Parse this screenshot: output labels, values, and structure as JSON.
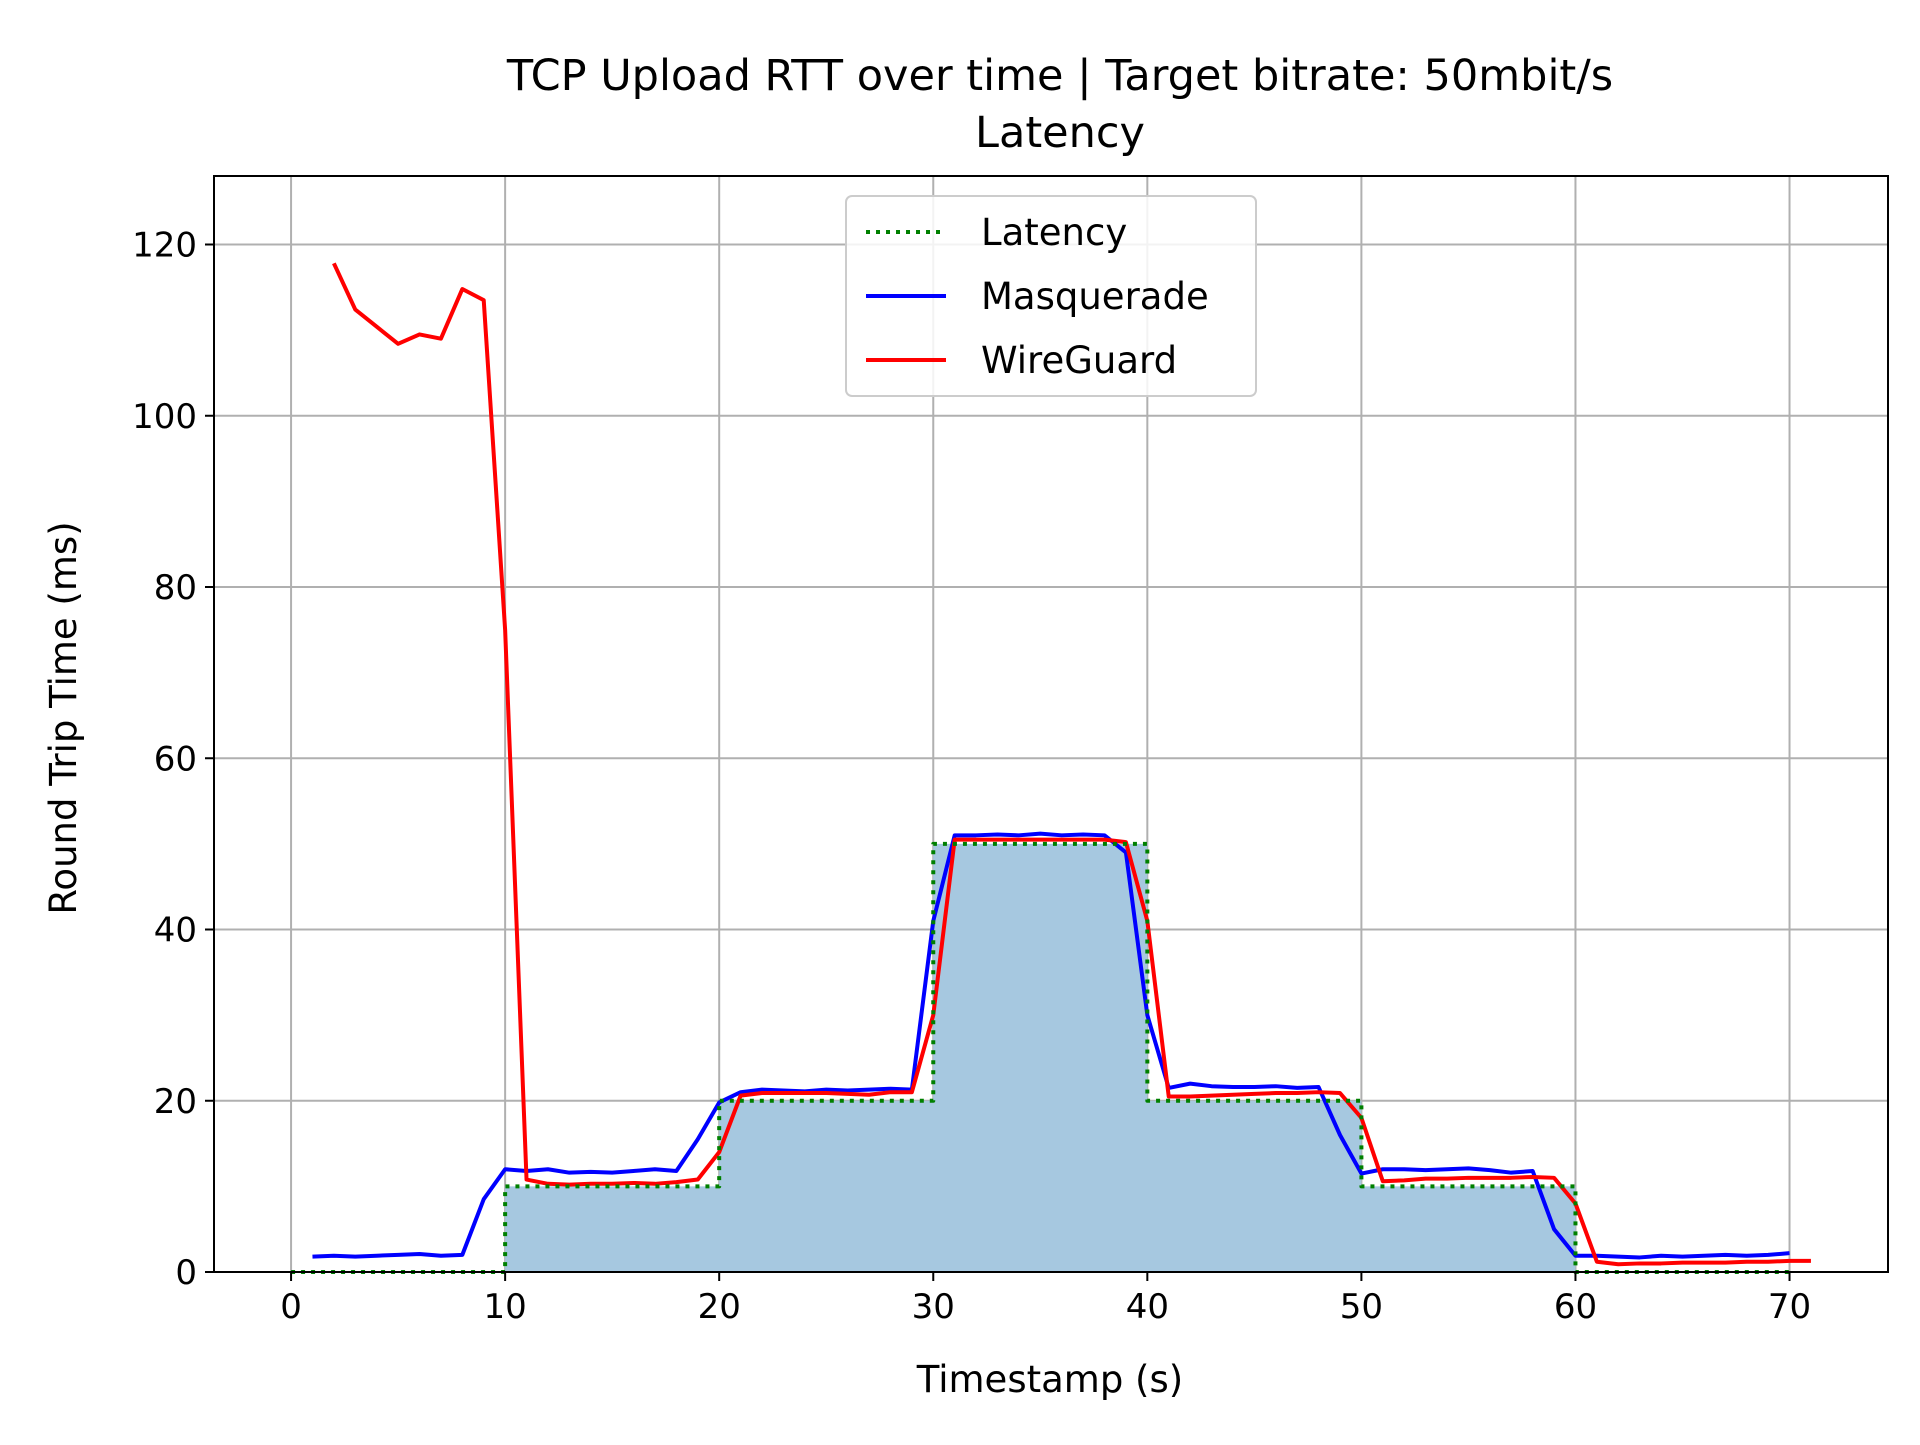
{
  "chart_data": {
    "type": "line",
    "title": "TCP Upload RTT over time | Target bitrate: 50mbit/s",
    "subtitle": "Latency",
    "xlabel": "Timestamp (s)",
    "ylabel": "Round Trip Time (ms)",
    "xlim": [
      -3.6,
      74.6
    ],
    "ylim": [
      0,
      128
    ],
    "xticks": [
      0,
      10,
      20,
      30,
      40,
      50,
      60,
      70
    ],
    "yticks": [
      0,
      20,
      40,
      60,
      80,
      100,
      120
    ],
    "grid": true,
    "legend_position": "upper center",
    "series": [
      {
        "name": "Latency",
        "style": "dotted-step",
        "color": "#008000",
        "fill_color": "#a6c8e0",
        "x": [
          0,
          10,
          10,
          20,
          20,
          30,
          30,
          40,
          40,
          50,
          50,
          60,
          60,
          70
        ],
        "y": [
          0,
          0,
          10,
          10,
          20,
          20,
          50,
          50,
          20,
          20,
          10,
          10,
          0,
          0
        ]
      },
      {
        "name": "Masquerade",
        "style": "solid",
        "color": "#0000ff",
        "x": [
          1,
          2,
          3,
          4,
          5,
          6,
          7,
          8,
          9,
          10,
          11,
          12,
          13,
          14,
          15,
          16,
          17,
          18,
          19,
          20,
          21,
          22,
          23,
          24,
          25,
          26,
          27,
          28,
          29,
          30,
          31,
          32,
          33,
          34,
          35,
          36,
          37,
          38,
          39,
          40,
          41,
          42,
          43,
          44,
          45,
          46,
          47,
          48,
          49,
          50,
          51,
          52,
          53,
          54,
          55,
          56,
          57,
          58,
          59,
          60,
          61,
          62,
          63,
          64,
          65,
          66,
          67,
          68,
          69,
          70
        ],
        "y": [
          1.8,
          1.9,
          1.8,
          1.9,
          2.0,
          2.1,
          1.9,
          2.0,
          8.5,
          12.0,
          11.8,
          12.0,
          11.6,
          11.7,
          11.6,
          11.8,
          12.0,
          11.8,
          15.5,
          19.8,
          21.0,
          21.3,
          21.2,
          21.1,
          21.3,
          21.2,
          21.3,
          21.4,
          21.3,
          41.0,
          51.0,
          51.0,
          51.1,
          51.0,
          51.2,
          51.0,
          51.1,
          51.0,
          49.0,
          30.0,
          21.5,
          22.0,
          21.7,
          21.6,
          21.6,
          21.7,
          21.5,
          21.6,
          16.0,
          11.5,
          12.0,
          12.0,
          11.9,
          12.0,
          12.1,
          11.9,
          11.6,
          11.8,
          5.0,
          1.9,
          1.9,
          1.8,
          1.7,
          1.9,
          1.8,
          1.9,
          2.0,
          1.9,
          2.0,
          2.2
        ]
      },
      {
        "name": "WireGuard",
        "style": "solid",
        "color": "#ff0000",
        "x": [
          2,
          3,
          4,
          5,
          6,
          7,
          8,
          9,
          10,
          11,
          12,
          13,
          14,
          15,
          16,
          17,
          18,
          19,
          20,
          21,
          22,
          23,
          24,
          25,
          26,
          27,
          28,
          29,
          30,
          31,
          32,
          33,
          34,
          35,
          36,
          37,
          38,
          39,
          40,
          41,
          42,
          43,
          44,
          45,
          46,
          47,
          48,
          49,
          50,
          51,
          52,
          53,
          54,
          55,
          56,
          57,
          58,
          59,
          60,
          61,
          62,
          63,
          64,
          65,
          66,
          67,
          68,
          69,
          70,
          71
        ],
        "y": [
          117.8,
          112.4,
          110.4,
          108.4,
          109.5,
          109.0,
          114.8,
          113.5,
          75.0,
          10.8,
          10.3,
          10.2,
          10.3,
          10.3,
          10.4,
          10.3,
          10.5,
          10.8,
          14.0,
          20.6,
          20.9,
          20.9,
          20.9,
          20.9,
          20.8,
          20.7,
          21.0,
          21.0,
          30.0,
          50.5,
          50.5,
          50.5,
          50.5,
          50.5,
          50.5,
          50.5,
          50.5,
          50.2,
          41.0,
          20.5,
          20.5,
          20.6,
          20.7,
          20.8,
          20.9,
          20.9,
          21.0,
          20.9,
          18.0,
          10.6,
          10.7,
          10.9,
          10.9,
          11.0,
          11.0,
          11.0,
          11.1,
          11.0,
          8.0,
          1.2,
          0.9,
          1.0,
          1.0,
          1.1,
          1.1,
          1.1,
          1.2,
          1.2,
          1.3,
          1.3
        ]
      }
    ]
  }
}
